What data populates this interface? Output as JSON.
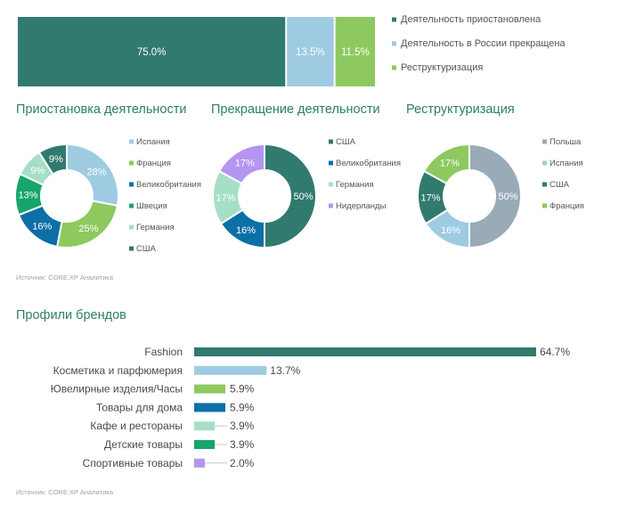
{
  "colors": {
    "teal_dark": "#317a6f",
    "light_blue": "#9ecbe2",
    "green": "#8dc95f",
    "blue": "#0c6fa8",
    "emerald": "#16a56b",
    "mint": "#a6dfc6",
    "gray_blue": "#9aabb8",
    "lavender": "#b495f0",
    "section_title": "#2e7d6b"
  },
  "chart_data": [
    {
      "type": "bar",
      "orientation": "horizontal-stacked",
      "categories": [
        "Деятельность приостановлена",
        "Деятельность в России прекращена",
        "Реструктуризация"
      ],
      "values": [
        75.0,
        13.5,
        11.5
      ],
      "labels": [
        "75.0%",
        "13.5%",
        "11.5%"
      ],
      "colors": [
        "#317a6f",
        "#9ecbe2",
        "#8dc95f"
      ],
      "legend_position": "right"
    },
    {
      "type": "pie",
      "title": "Приостановка деятельности",
      "categories": [
        "Испания",
        "Франция",
        "Великобритания",
        "Швеция",
        "Германия",
        "США"
      ],
      "values": [
        28,
        25,
        16,
        13,
        9,
        9
      ],
      "labels": [
        "28%",
        "25%",
        "16%",
        "13%",
        "9%",
        "9%"
      ],
      "colors": [
        "#9ecbe2",
        "#8dc95f",
        "#0c6fa8",
        "#16a56b",
        "#a6dfc6",
        "#317a6f"
      ],
      "legend_position": "right"
    },
    {
      "type": "pie",
      "title": "Прекращение деятельности",
      "categories": [
        "США",
        "Великобритания",
        "Германия",
        "Нидерланды"
      ],
      "values": [
        50,
        16,
        17,
        17
      ],
      "labels": [
        "50%",
        "16%",
        "17%",
        "17%"
      ],
      "colors": [
        "#317a6f",
        "#0c6fa8",
        "#a6dfc6",
        "#b495f0"
      ],
      "legend_position": "right"
    },
    {
      "type": "pie",
      "title": "Реструктуризация",
      "categories": [
        "Польша",
        "Испания",
        "США",
        "Франция"
      ],
      "values": [
        50,
        16,
        17,
        17
      ],
      "labels": [
        "50%",
        "16%",
        "17%",
        "17%"
      ],
      "colors": [
        "#9aabb8",
        "#9ecbe2",
        "#317a6f",
        "#8dc95f"
      ],
      "legend_position": "right"
    },
    {
      "type": "bar",
      "orientation": "horizontal",
      "title": "Профили брендов",
      "categories": [
        "Fashion",
        "Косметика и парфюмерия",
        "Ювелирные изделия/Часы",
        "Товары для дома",
        "Кафе и рестораны",
        "Детские товары",
        "Спортивные товары"
      ],
      "values": [
        64.7,
        13.7,
        5.9,
        5.9,
        3.9,
        3.9,
        2.0
      ],
      "labels": [
        "64.7%",
        "13.7%",
        "5.9%",
        "5.9%",
        "3.9%",
        "3.9%",
        "2.0%"
      ],
      "colors": [
        "#317a6f",
        "#9ecbe2",
        "#8dc95f",
        "#0c6fa8",
        "#a6dfc6",
        "#16a56b",
        "#b495f0"
      ],
      "xlim": [
        0,
        64.7
      ]
    }
  ],
  "sources": {
    "top": "Источник: CORE.XP Аналитика",
    "bottom": "Источник: CORE.XP Аналитика"
  }
}
